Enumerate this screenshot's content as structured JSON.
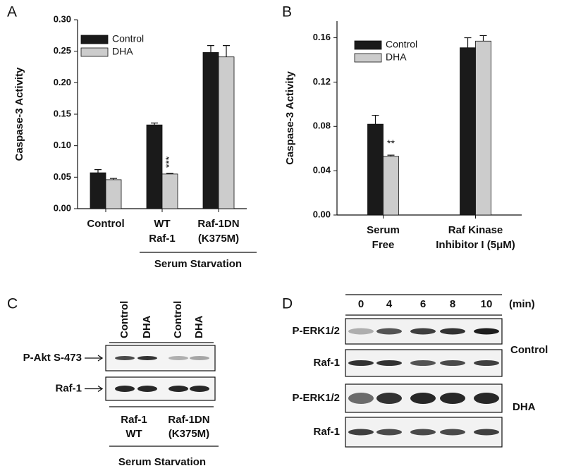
{
  "chart_data": [
    {
      "type": "bar",
      "panel_label": "A",
      "ylabel": "Caspase-3 Activity",
      "categories": [
        [
          "Control"
        ],
        [
          "WT",
          "Raf-1"
        ],
        [
          "Raf-1DN",
          "(K375M)"
        ]
      ],
      "series": [
        {
          "name": "Control",
          "color": "#1a1a1a",
          "values": [
            0.057,
            0.133,
            0.248
          ],
          "errors": [
            0.005,
            0.003,
            0.011
          ],
          "annotations": [
            null,
            null,
            null
          ]
        },
        {
          "name": "DHA",
          "color": "#cccccc",
          "values": [
            0.046,
            0.055,
            0.241
          ],
          "errors": [
            0.002,
            0.001,
            0.018
          ],
          "annotations": [
            null,
            "***",
            null
          ]
        }
      ],
      "ylim": [
        0,
        0.3
      ],
      "yticks": [
        {
          "value": 0,
          "label": "0.00"
        },
        {
          "value": 0.05,
          "label": "0.05"
        },
        {
          "value": 0.1,
          "label": "0.10"
        },
        {
          "value": 0.15,
          "label": "0.15"
        },
        {
          "value": 0.2,
          "label": "0.20"
        },
        {
          "value": 0.25,
          "label": "0.25"
        },
        {
          "value": 0.3,
          "label": "0.30"
        }
      ],
      "group_label": "Serum Starvation"
    },
    {
      "type": "bar",
      "panel_label": "B",
      "ylabel": "Caspase-3 Activity",
      "categories": [
        [
          "Serum",
          "Free"
        ],
        [
          "Raf Kinase",
          "Inhibitor I (5μM)"
        ]
      ],
      "series": [
        {
          "name": "Control",
          "color": "#1a1a1a",
          "values": [
            0.082,
            0.151
          ],
          "errors": [
            0.008,
            0.009
          ],
          "annotations": [
            null,
            null
          ]
        },
        {
          "name": "DHA",
          "color": "#cccccc",
          "values": [
            0.053,
            0.157
          ],
          "errors": [
            0.001,
            0.005
          ],
          "annotations": [
            "**",
            null
          ]
        }
      ],
      "ylim": [
        0,
        0.175
      ],
      "yticks": [
        {
          "value": 0,
          "label": "0.00"
        },
        {
          "value": 0.04,
          "label": "0.04"
        },
        {
          "value": 0.08,
          "label": "0.08"
        },
        {
          "value": 0.12,
          "label": "0.12"
        },
        {
          "value": 0.16,
          "label": "0.16"
        }
      ]
    }
  ],
  "blots": [
    {
      "panel_label": "C",
      "lanes": [
        "Control",
        "DHA",
        "Control",
        "DHA"
      ],
      "rows": [
        "P-Akt S-473",
        "Raf-1"
      ],
      "groups": [
        [
          "Raf-1",
          "WT"
        ],
        [
          "Raf-1DN",
          "(K375M)"
        ]
      ],
      "footer": "Serum Starvation"
    },
    {
      "panel_label": "D",
      "lanes": [
        "0",
        "4",
        "6",
        "8",
        "10"
      ],
      "unit": "(min)",
      "rows": [
        "P-ERK1/2",
        "Raf-1",
        "P-ERK1/2",
        "Raf-1"
      ],
      "conditions": [
        "Control",
        "DHA"
      ]
    }
  ]
}
